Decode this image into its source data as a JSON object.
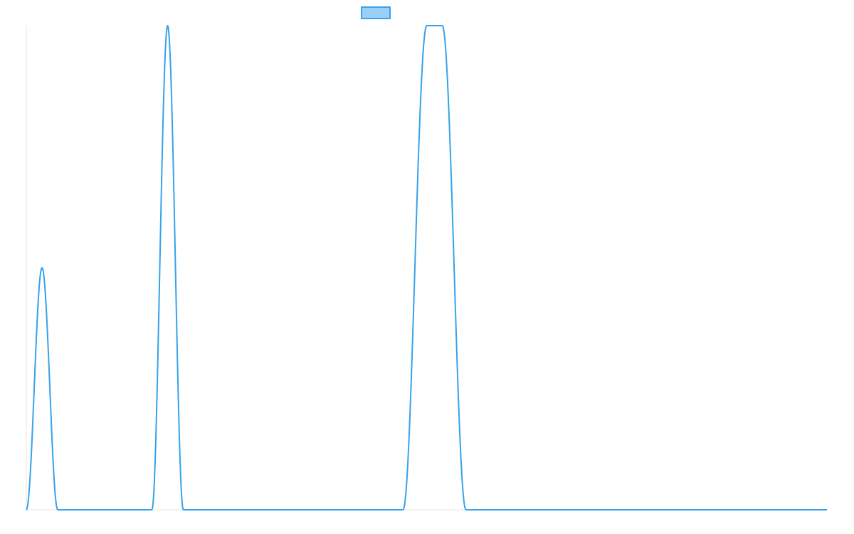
{
  "chart_data": {
    "type": "line",
    "title": "",
    "xlabel": "",
    "ylabel": "",
    "legend": {
      "placement": "top-center",
      "entries": [
        {
          "label": "",
          "fill_color": "#9AD0F5",
          "stroke_color": "#36A2EB"
        }
      ]
    },
    "grid": false,
    "ylim": [
      0,
      1
    ],
    "xlim": [
      0,
      51
    ],
    "series": [
      {
        "color": "#36A2EB",
        "x": [
          0,
          1,
          2,
          8,
          9,
          10,
          24,
          25.5,
          26.5,
          28,
          51
        ],
        "y": [
          0,
          0.5,
          0,
          0,
          1,
          0,
          0,
          1,
          1,
          0,
          0
        ]
      }
    ]
  }
}
